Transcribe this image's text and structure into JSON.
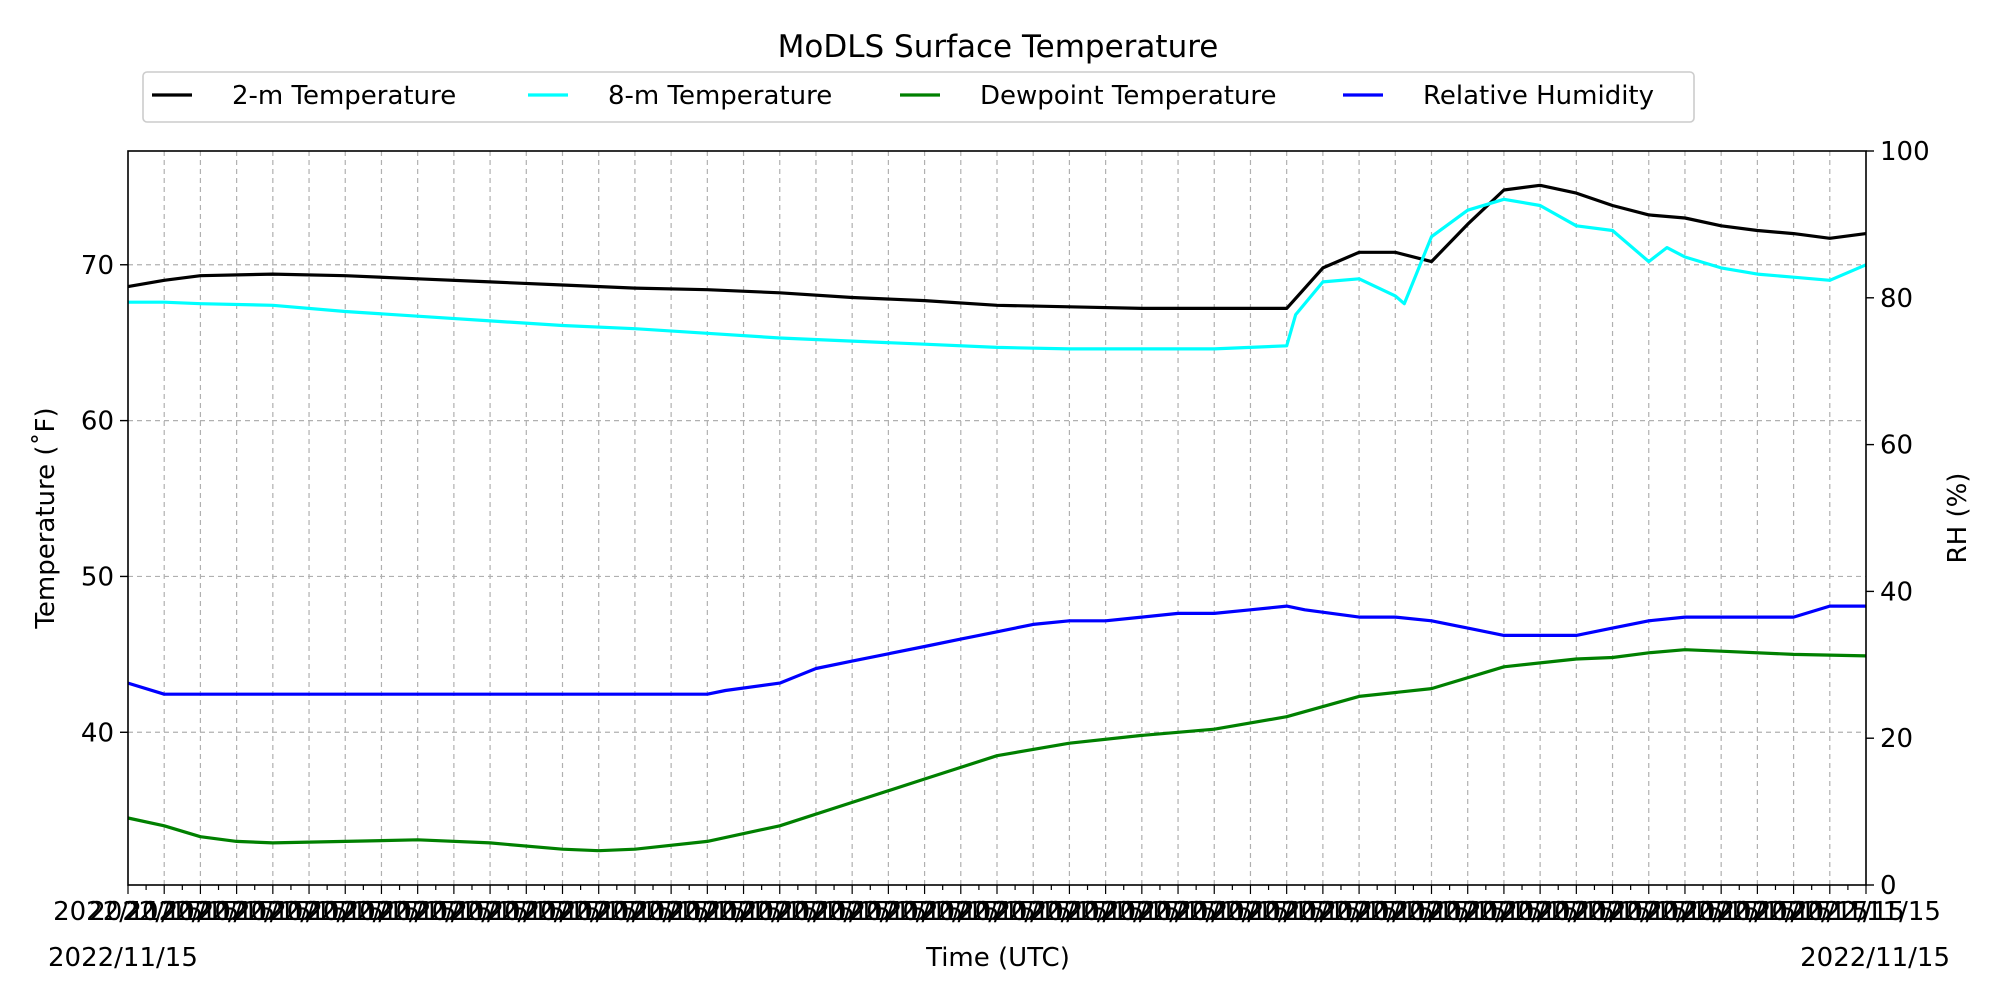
{
  "chart_data": {
    "type": "line",
    "title": "MoDLS Surface Temperature",
    "xlabel": "Time (UTC)",
    "ylabel_left": "Temperature (˚F)",
    "ylabel_right": "RH (%)",
    "date_left": "2022/11/15",
    "date_right": "2022/11/15",
    "x_tick_text": "2022/11/15",
    "ylim_left": [
      30.2,
      77.3
    ],
    "ylim_right": [
      0,
      100
    ],
    "yticks_left": [
      40,
      50,
      60,
      70
    ],
    "yticks_right": [
      0,
      20,
      40,
      60,
      80,
      100
    ],
    "xlim": [
      0,
      960
    ],
    "x_unit": "minutes since 2022/11/15 00:00 UTC",
    "grid": true,
    "legend_position": "top-center",
    "series": [
      {
        "name": "2-m Temperature",
        "color": "#000000",
        "axis": "left",
        "x": [
          0,
          20,
          40,
          80,
          120,
          160,
          200,
          240,
          280,
          320,
          360,
          400,
          440,
          480,
          520,
          560,
          600,
          640,
          660,
          680,
          700,
          720,
          740,
          760,
          780,
          800,
          820,
          840,
          860,
          880,
          900,
          920,
          940,
          960
        ],
        "y": [
          68.6,
          69.0,
          69.3,
          69.4,
          69.3,
          69.1,
          68.9,
          68.7,
          68.5,
          68.4,
          68.2,
          67.9,
          67.7,
          67.4,
          67.3,
          67.2,
          67.2,
          67.2,
          69.8,
          70.8,
          70.8,
          70.2,
          72.6,
          74.8,
          75.1,
          74.6,
          73.8,
          73.2,
          73.0,
          72.5,
          72.2,
          72.0,
          71.7,
          72.0
        ]
      },
      {
        "name": "8-m Temperature",
        "color": "#00ffff",
        "axis": "left",
        "x": [
          0,
          20,
          40,
          80,
          120,
          160,
          200,
          240,
          280,
          320,
          360,
          400,
          440,
          480,
          520,
          560,
          600,
          640,
          645,
          660,
          680,
          700,
          705,
          720,
          740,
          760,
          780,
          800,
          820,
          840,
          850,
          860,
          880,
          900,
          920,
          940,
          960
        ],
        "y": [
          67.6,
          67.6,
          67.5,
          67.4,
          67.0,
          66.7,
          66.4,
          66.1,
          65.9,
          65.6,
          65.3,
          65.1,
          64.9,
          64.7,
          64.6,
          64.6,
          64.6,
          64.8,
          66.8,
          68.9,
          69.1,
          68.0,
          67.5,
          71.8,
          73.5,
          74.2,
          73.8,
          72.5,
          72.2,
          70.2,
          71.1,
          70.5,
          69.8,
          69.4,
          69.2,
          69.0,
          70.0
        ]
      },
      {
        "name": "Dewpoint Temperature",
        "color": "#008000",
        "axis": "left",
        "x": [
          0,
          20,
          40,
          60,
          80,
          120,
          160,
          200,
          240,
          260,
          280,
          320,
          360,
          400,
          440,
          480,
          520,
          560,
          600,
          640,
          680,
          720,
          760,
          800,
          820,
          840,
          860,
          880,
          920,
          960
        ],
        "y": [
          34.5,
          34.0,
          33.3,
          33.0,
          32.9,
          33.0,
          33.1,
          32.9,
          32.5,
          32.4,
          32.5,
          33.0,
          34.0,
          35.5,
          37.0,
          38.5,
          39.3,
          39.8,
          40.2,
          41.0,
          42.3,
          42.8,
          44.2,
          44.7,
          44.8,
          45.1,
          45.3,
          45.2,
          45.0,
          44.9
        ]
      },
      {
        "name": "Relative Humidity",
        "color": "#0000ff",
        "axis": "right",
        "x": [
          0,
          20,
          40,
          80,
          120,
          160,
          200,
          240,
          280,
          320,
          330,
          360,
          370,
          380,
          400,
          420,
          440,
          460,
          480,
          500,
          520,
          540,
          560,
          580,
          600,
          620,
          640,
          650,
          680,
          700,
          720,
          740,
          760,
          780,
          800,
          820,
          840,
          860,
          880,
          900,
          920,
          940,
          960
        ],
        "y": [
          27.5,
          26.0,
          26.0,
          26.0,
          26.0,
          26.0,
          26.0,
          26.0,
          26.0,
          26.0,
          26.5,
          27.5,
          28.5,
          29.5,
          30.5,
          31.5,
          32.5,
          33.5,
          34.5,
          35.5,
          36.0,
          36.0,
          36.5,
          37.0,
          37.0,
          37.5,
          38.0,
          37.5,
          36.5,
          36.5,
          36.0,
          35.0,
          34.0,
          34.0,
          34.0,
          35.0,
          36.0,
          36.5,
          36.5,
          36.5,
          36.5,
          38.0,
          38.0
        ]
      }
    ]
  }
}
